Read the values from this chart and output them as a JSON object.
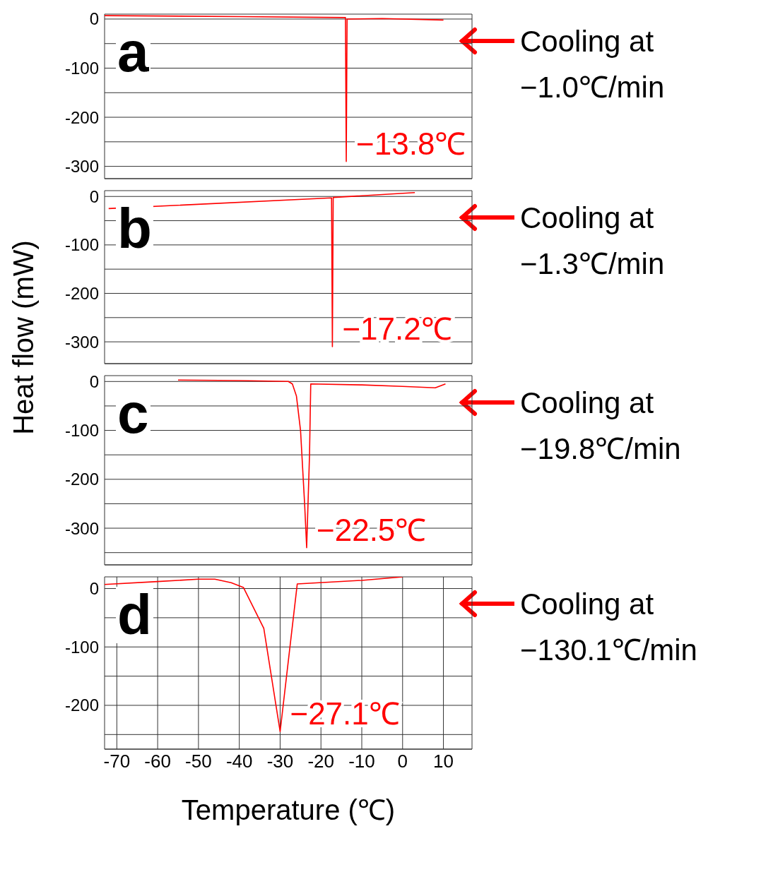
{
  "chart_data": [
    {
      "type": "line",
      "title": "a",
      "ylabel": "Heat flow (mW)",
      "xlim": [
        -73,
        17
      ],
      "xticks": [
        -70,
        -60,
        -50,
        -40,
        -30,
        -20,
        -10,
        0,
        10
      ],
      "ylim": [
        -325,
        10
      ],
      "yticks": [
        {
          "value": -300,
          "label": "-300"
        },
        {
          "value": -250,
          "label": null
        },
        {
          "value": -200,
          "label": "-200"
        },
        {
          "value": -150,
          "label": null
        },
        {
          "value": -100,
          "label": "-100"
        },
        {
          "value": -50,
          "label": null
        },
        {
          "value": 0,
          "label": "0"
        }
      ],
      "grid": true,
      "tick_labels": "y",
      "series": [
        {
          "color": "#ff0000",
          "x": [
            -73,
            -40,
            -14,
            -13.8,
            -13.6,
            -5,
            10
          ],
          "values": [
            7,
            5,
            3,
            -290,
            0,
            1,
            -2
          ]
        }
      ],
      "annotations": [
        "Cooling at",
        "−1.0℃/min",
        {
          "text": "−13.8℃",
          "x": -13.8,
          "y": -290
        }
      ]
    },
    {
      "type": "line",
      "title": "b",
      "xlim": [
        -73,
        17
      ],
      "xticks": [
        -70,
        -60,
        -50,
        -40,
        -30,
        -20,
        -10,
        0,
        10
      ],
      "ylim": [
        -345,
        12
      ],
      "yticks": [
        {
          "value": -300,
          "label": "-300"
        },
        {
          "value": -250,
          "label": null
        },
        {
          "value": -200,
          "label": "-200"
        },
        {
          "value": -150,
          "label": null
        },
        {
          "value": -100,
          "label": "-100"
        },
        {
          "value": -50,
          "label": null
        },
        {
          "value": 0,
          "label": "0"
        }
      ],
      "grid": true,
      "tick_labels": "y",
      "series": [
        {
          "color": "#ff0000",
          "x": [
            -72,
            -17.4,
            -17.2,
            -17,
            3
          ],
          "values": [
            -25,
            -3,
            -310,
            -2,
            8
          ]
        }
      ],
      "annotations": [
        "Cooling at",
        "−1.3℃/min",
        {
          "text": "−17.2℃",
          "x": -17.2,
          "y": -310
        }
      ]
    },
    {
      "type": "line",
      "title": "c",
      "xlim": [
        -73,
        17
      ],
      "xticks": [
        -70,
        -60,
        -50,
        -40,
        -30,
        -20,
        -10,
        0,
        10
      ],
      "ylim": [
        -375,
        12
      ],
      "yticks": [
        {
          "value": -350,
          "label": null
        },
        {
          "value": -300,
          "label": "-300"
        },
        {
          "value": -250,
          "label": null
        },
        {
          "value": -200,
          "label": "-200"
        },
        {
          "value": -150,
          "label": null
        },
        {
          "value": -100,
          "label": "-100"
        },
        {
          "value": -50,
          "label": null
        },
        {
          "value": 0,
          "label": "0"
        }
      ],
      "grid": true,
      "tick_labels": "y",
      "series": [
        {
          "color": "#ff0000",
          "x": [
            -55,
            -40,
            -28,
            -27,
            -26,
            -25,
            -24,
            -23.5,
            -22.8,
            -22.5,
            -10,
            0,
            8,
            10.5
          ],
          "values": [
            3,
            2,
            0,
            -5,
            -30,
            -100,
            -250,
            -340,
            -150,
            -5,
            -7,
            -10,
            -13,
            -5
          ]
        }
      ],
      "annotations": [
        "Cooling at",
        "−19.8℃/min",
        {
          "text": "−22.5℃",
          "x": -23.5,
          "y": -340
        }
      ]
    },
    {
      "type": "line",
      "title": "d",
      "xlabel": "Temperature (℃)",
      "xlim": [
        -73,
        17
      ],
      "xticks": [
        -70,
        -60,
        -50,
        -40,
        -30,
        -20,
        -10,
        0,
        10
      ],
      "ylim": [
        -275,
        20
      ],
      "yticks": [
        {
          "value": -250,
          "label": null
        },
        {
          "value": -200,
          "label": "-200"
        },
        {
          "value": -150,
          "label": null
        },
        {
          "value": -100,
          "label": "-100"
        },
        {
          "value": -50,
          "label": null
        },
        {
          "value": 0,
          "label": "0"
        }
      ],
      "grid": true,
      "series": [
        {
          "color": "#ff0000",
          "x": [
            -73,
            -60,
            -50,
            -46,
            -42,
            -39,
            -34,
            -30,
            -25.8,
            -10,
            0
          ],
          "values": [
            7,
            12,
            16,
            16,
            10,
            2,
            -68,
            -245,
            8,
            14,
            20
          ]
        }
      ],
      "annotations": [
        "Cooling at",
        "−130.1℃/min",
        {
          "text": "−27.1℃",
          "x": -30,
          "y": -245
        }
      ]
    }
  ]
}
